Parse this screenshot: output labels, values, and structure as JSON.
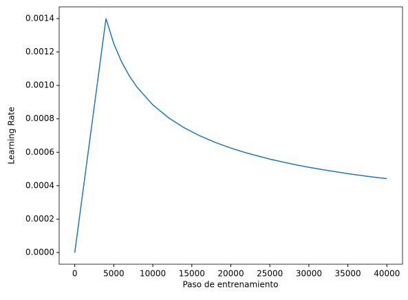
{
  "chart_data": {
    "type": "line",
    "xlabel": "Paso de entrenamiento",
    "ylabel": "Learning Rate",
    "x": [
      0,
      4000,
      5000,
      6000,
      7000,
      8000,
      10000,
      12000,
      14000,
      16000,
      18000,
      20000,
      22000,
      25000,
      28000,
      30000,
      32000,
      35000,
      38000,
      40000
    ],
    "series": [
      {
        "name": "Learning Rate",
        "color": "#1f77b4",
        "values": [
          0,
          0.0014,
          0.00125,
          0.001141,
          0.001056,
          0.000988,
          0.000884,
          0.000807,
          0.000747,
          0.000699,
          0.000659,
          0.000625,
          0.000596,
          0.000559,
          0.000528,
          0.00051,
          0.000494,
          0.000472,
          0.000453,
          0.000442
        ]
      }
    ],
    "xlim": [
      -2000,
      42000
    ],
    "xticks": [
      0,
      5000,
      10000,
      15000,
      20000,
      25000,
      30000,
      35000,
      40000
    ],
    "ylim": [
      -7e-05,
      0.00147
    ],
    "yticks": [
      {
        "value": 0,
        "label": "0.0000"
      },
      {
        "value": 0.0002,
        "label": "0.0002"
      },
      {
        "value": 0.0004,
        "label": "0.0004"
      },
      {
        "value": 0.0006,
        "label": "0.0006"
      },
      {
        "value": 0.0008,
        "label": "0.0008"
      },
      {
        "value": 0.001,
        "label": "0.0010"
      },
      {
        "value": 0.0012,
        "label": "0.0012"
      },
      {
        "value": 0.0014,
        "label": "0.0014"
      }
    ],
    "grid": false
  }
}
